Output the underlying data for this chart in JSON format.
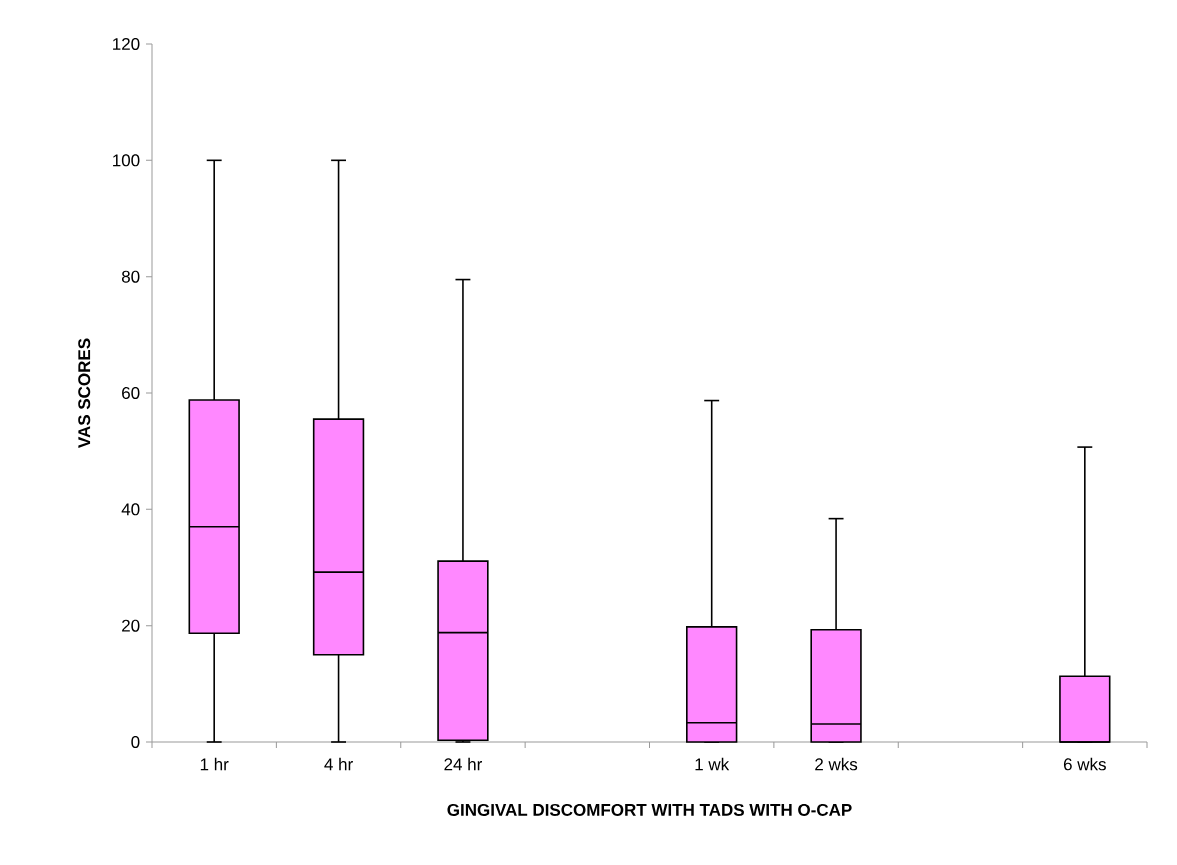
{
  "chart_data": {
    "type": "box",
    "xlabel": "GINGIVAL DISCOMFORT WITH TADS WITH O-CAP",
    "ylabel": "VAS SCORES",
    "categories": [
      "1 hr",
      "4 hr",
      "24 hr",
      null,
      "1 wk",
      "2 wks",
      null,
      "6 wks"
    ],
    "color": "#ff88ff",
    "boxes": [
      {
        "low": 0,
        "q1": 18.7,
        "median": 37,
        "q3": 58.8,
        "high": 100
      },
      {
        "low": 0,
        "q1": 15,
        "median": 29.2,
        "q3": 55.5,
        "high": 100
      },
      {
        "low": 0,
        "q1": 0.3,
        "median": 18.8,
        "q3": 31.1,
        "high": 79.5
      },
      null,
      {
        "low": 0,
        "q1": 0,
        "median": 3.3,
        "q3": 19.8,
        "high": 58.7
      },
      {
        "low": 0,
        "q1": 0,
        "median": 3.1,
        "q3": 19.3,
        "high": 38.4
      },
      null,
      {
        "low": 0,
        "q1": 0,
        "median": 0,
        "q3": 11.3,
        "high": 50.7
      }
    ],
    "ylim": [
      0,
      120
    ],
    "yticks": [
      0,
      20,
      40,
      60,
      80,
      100,
      120
    ]
  }
}
